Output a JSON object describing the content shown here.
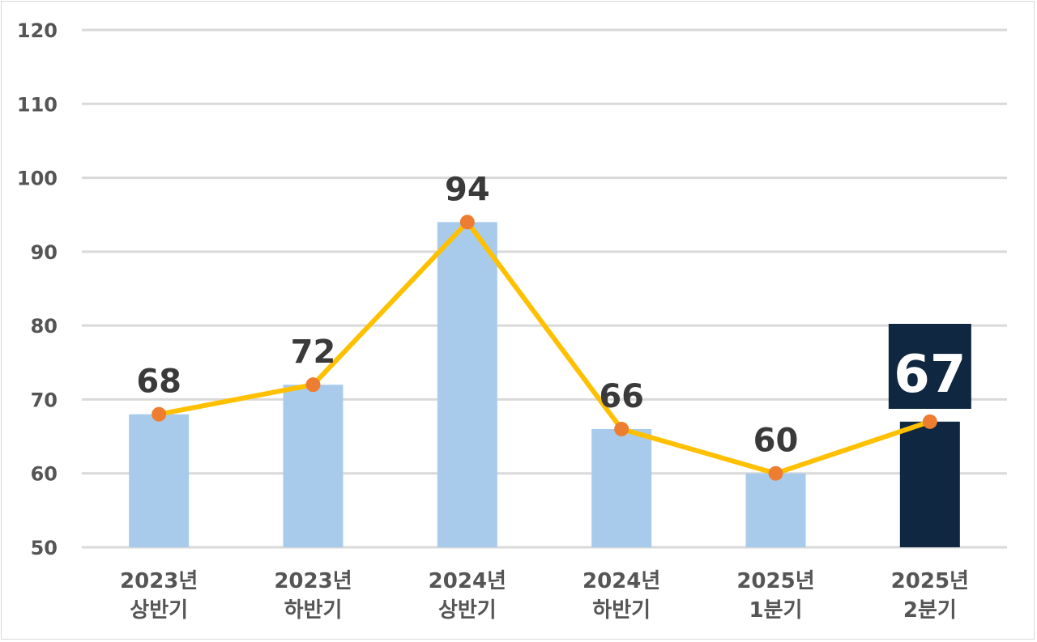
{
  "chart_data": {
    "type": "bar",
    "categories": [
      [
        "2023년",
        "상반기"
      ],
      [
        "2023년",
        "하반기"
      ],
      [
        "2024년",
        "상반기"
      ],
      [
        "2024년",
        "하반기"
      ],
      [
        "2025년",
        "1분기"
      ],
      [
        "2025년",
        "2분기"
      ]
    ],
    "values": [
      68,
      72,
      94,
      66,
      60,
      67
    ],
    "data_labels": [
      "68",
      "72",
      "94",
      "66",
      "60",
      "67"
    ],
    "overlay_line": {
      "type": "line",
      "values": [
        68,
        72,
        94,
        66,
        60,
        67
      ]
    },
    "highlight_index": 5,
    "ylim": [
      50,
      120
    ],
    "yticks": [
      50,
      60,
      70,
      80,
      90,
      100,
      110,
      120
    ],
    "ytick_labels": [
      "50",
      "60",
      "70",
      "80",
      "90",
      "100",
      "110",
      "120"
    ],
    "grid": true,
    "title": "",
    "xlabel": "",
    "ylabel": "",
    "colors": {
      "bar": "#a9cbeb",
      "bar_highlight": "#0f2741",
      "line": "#ffc000",
      "marker": "#ed7d31",
      "grid": "#d9d9d9"
    }
  }
}
